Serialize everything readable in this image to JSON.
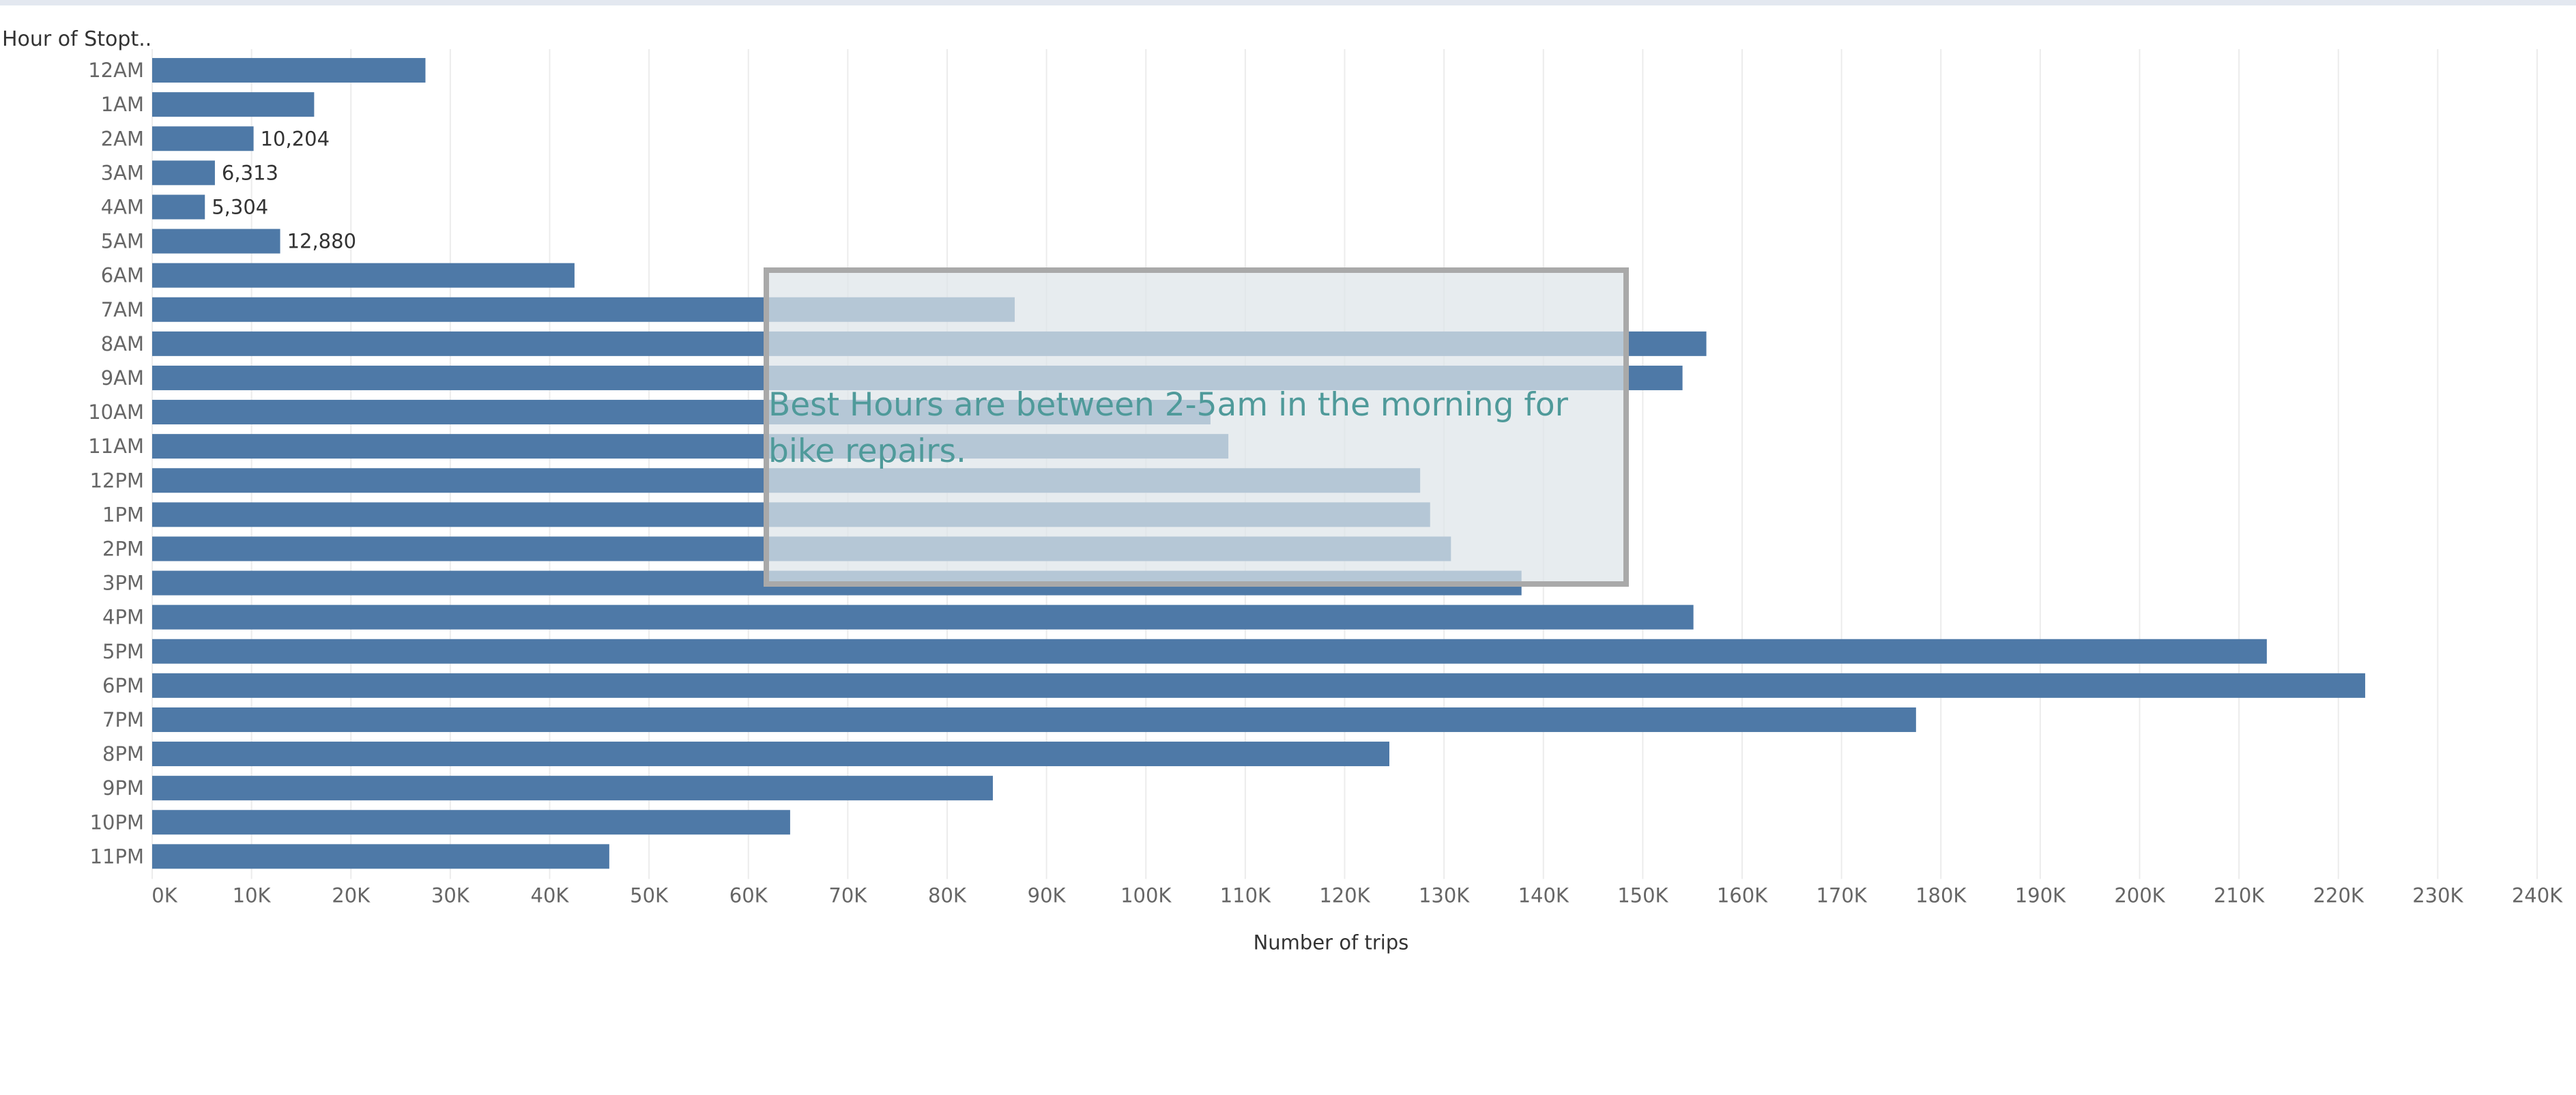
{
  "chart_data": {
    "type": "bar",
    "orientation": "horizontal",
    "title": "",
    "ycolumn_title": "Hour of Stopt..",
    "xlabel": "Number of trips",
    "categories": [
      "12AM",
      "1AM",
      "2AM",
      "3AM",
      "4AM",
      "5AM",
      "6AM",
      "7AM",
      "8AM",
      "9AM",
      "10AM",
      "11AM",
      "12PM",
      "1PM",
      "2PM",
      "3PM",
      "4PM",
      "5PM",
      "6PM",
      "7PM",
      "8PM",
      "9PM",
      "10PM",
      "11PM"
    ],
    "values": [
      27500,
      16300,
      10204,
      6313,
      5304,
      12880,
      42500,
      86800,
      156400,
      154000,
      106500,
      108300,
      127600,
      128600,
      130700,
      137800,
      155100,
      212800,
      222700,
      177500,
      124500,
      84600,
      64200,
      46000
    ],
    "data_labels": {
      "2": "10,204",
      "3": "6,313",
      "4": "5,304",
      "5": "12,880"
    },
    "xlim": [
      0,
      240000
    ],
    "x_ticks": [
      "0K",
      "10K",
      "20K",
      "30K",
      "40K",
      "50K",
      "60K",
      "70K",
      "80K",
      "90K",
      "100K",
      "110K",
      "120K",
      "130K",
      "140K",
      "150K",
      "160K",
      "170K",
      "180K",
      "190K",
      "200K",
      "210K",
      "220K",
      "230K",
      "240K"
    ],
    "grid": "vertical",
    "bar_color": "#4e79a7",
    "annotation": "Best Hours are between 2-5am in the morning for bike repairs."
  }
}
